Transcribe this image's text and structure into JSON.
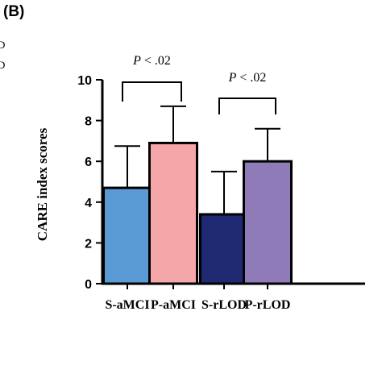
{
  "panel_label": "(B)",
  "edge_glyphs": [
    "D",
    "D"
  ],
  "chart_data": {
    "type": "bar",
    "categories": [
      "S-aMCI",
      "P-aMCI",
      "S-rLOD",
      "P-rLOD"
    ],
    "values": [
      4.7,
      6.9,
      3.4,
      6.0
    ],
    "errors": [
      2.05,
      1.8,
      2.1,
      1.6
    ],
    "bar_colors": [
      "#5b9bd5",
      "#f4a6a8",
      "#1f2a73",
      "#8e7bb8"
    ],
    "ylabel": "CARE index scores",
    "ylim": [
      0,
      10
    ],
    "yticks": [
      "0",
      "2",
      "4",
      "6",
      "8",
      "10"
    ],
    "significance": [
      {
        "from": 0,
        "to": 1,
        "label": "P < .02"
      },
      {
        "from": 2,
        "to": 3,
        "label": "P < .02"
      }
    ]
  }
}
